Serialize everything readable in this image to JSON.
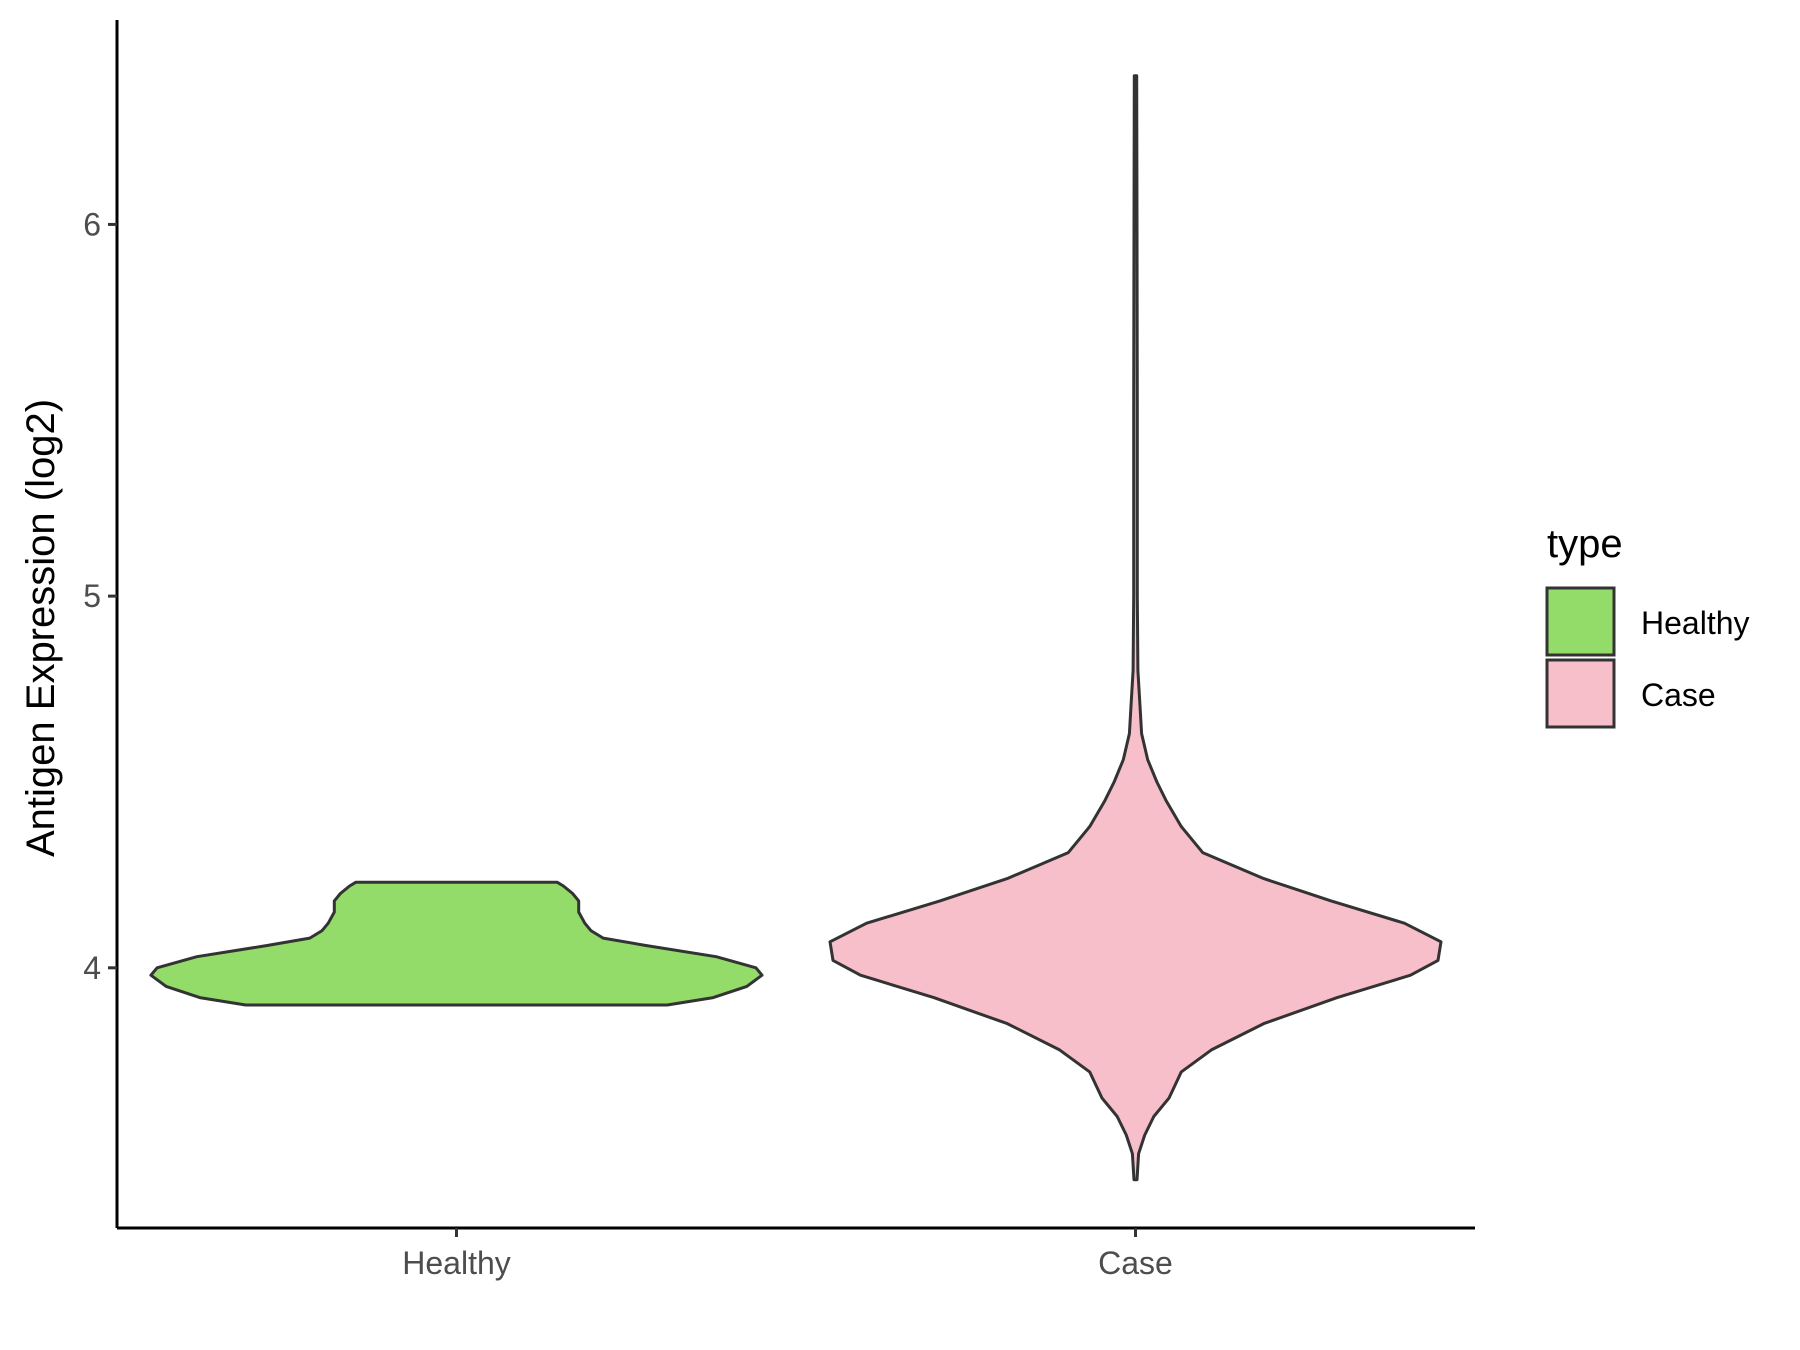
{
  "chart_data": {
    "type": "violin",
    "title": "",
    "xlabel": "",
    "ylabel": "Antigen Expression (log2)",
    "ylim": [
      3.3,
      6.55
    ],
    "yticks": [
      4,
      5,
      6
    ],
    "categories": [
      "Healthy",
      "Case"
    ],
    "grid": false,
    "legend": {
      "title": "type",
      "position": "right"
    },
    "series": [
      {
        "name": "Healthy",
        "color": "#93dc6a",
        "density": [
          [
            3.9,
            0.69
          ],
          [
            3.92,
            0.84
          ],
          [
            3.95,
            0.95
          ],
          [
            3.98,
            1.0
          ],
          [
            4.0,
            0.98
          ],
          [
            4.03,
            0.85
          ],
          [
            4.06,
            0.62
          ],
          [
            4.08,
            0.48
          ],
          [
            4.1,
            0.44
          ],
          [
            4.12,
            0.42
          ],
          [
            4.15,
            0.4
          ],
          [
            4.18,
            0.4
          ],
          [
            4.2,
            0.38
          ],
          [
            4.22,
            0.35
          ],
          [
            4.23,
            0.33
          ]
        ]
      },
      {
        "name": "Case",
        "color": "#f7bfca",
        "density": [
          [
            3.43,
            0.005
          ],
          [
            3.5,
            0.01
          ],
          [
            3.55,
            0.03
          ],
          [
            3.6,
            0.06
          ],
          [
            3.65,
            0.11
          ],
          [
            3.72,
            0.15
          ],
          [
            3.78,
            0.25
          ],
          [
            3.85,
            0.42
          ],
          [
            3.92,
            0.66
          ],
          [
            3.98,
            0.9
          ],
          [
            4.02,
            0.99
          ],
          [
            4.07,
            1.0
          ],
          [
            4.12,
            0.88
          ],
          [
            4.18,
            0.64
          ],
          [
            4.24,
            0.42
          ],
          [
            4.31,
            0.22
          ],
          [
            4.38,
            0.15
          ],
          [
            4.45,
            0.1
          ],
          [
            4.5,
            0.07
          ],
          [
            4.56,
            0.04
          ],
          [
            4.63,
            0.02
          ],
          [
            4.7,
            0.015
          ],
          [
            4.8,
            0.008
          ],
          [
            5.0,
            0.006
          ],
          [
            5.5,
            0.006
          ],
          [
            6.0,
            0.005
          ],
          [
            6.4,
            0.004
          ]
        ]
      }
    ]
  }
}
